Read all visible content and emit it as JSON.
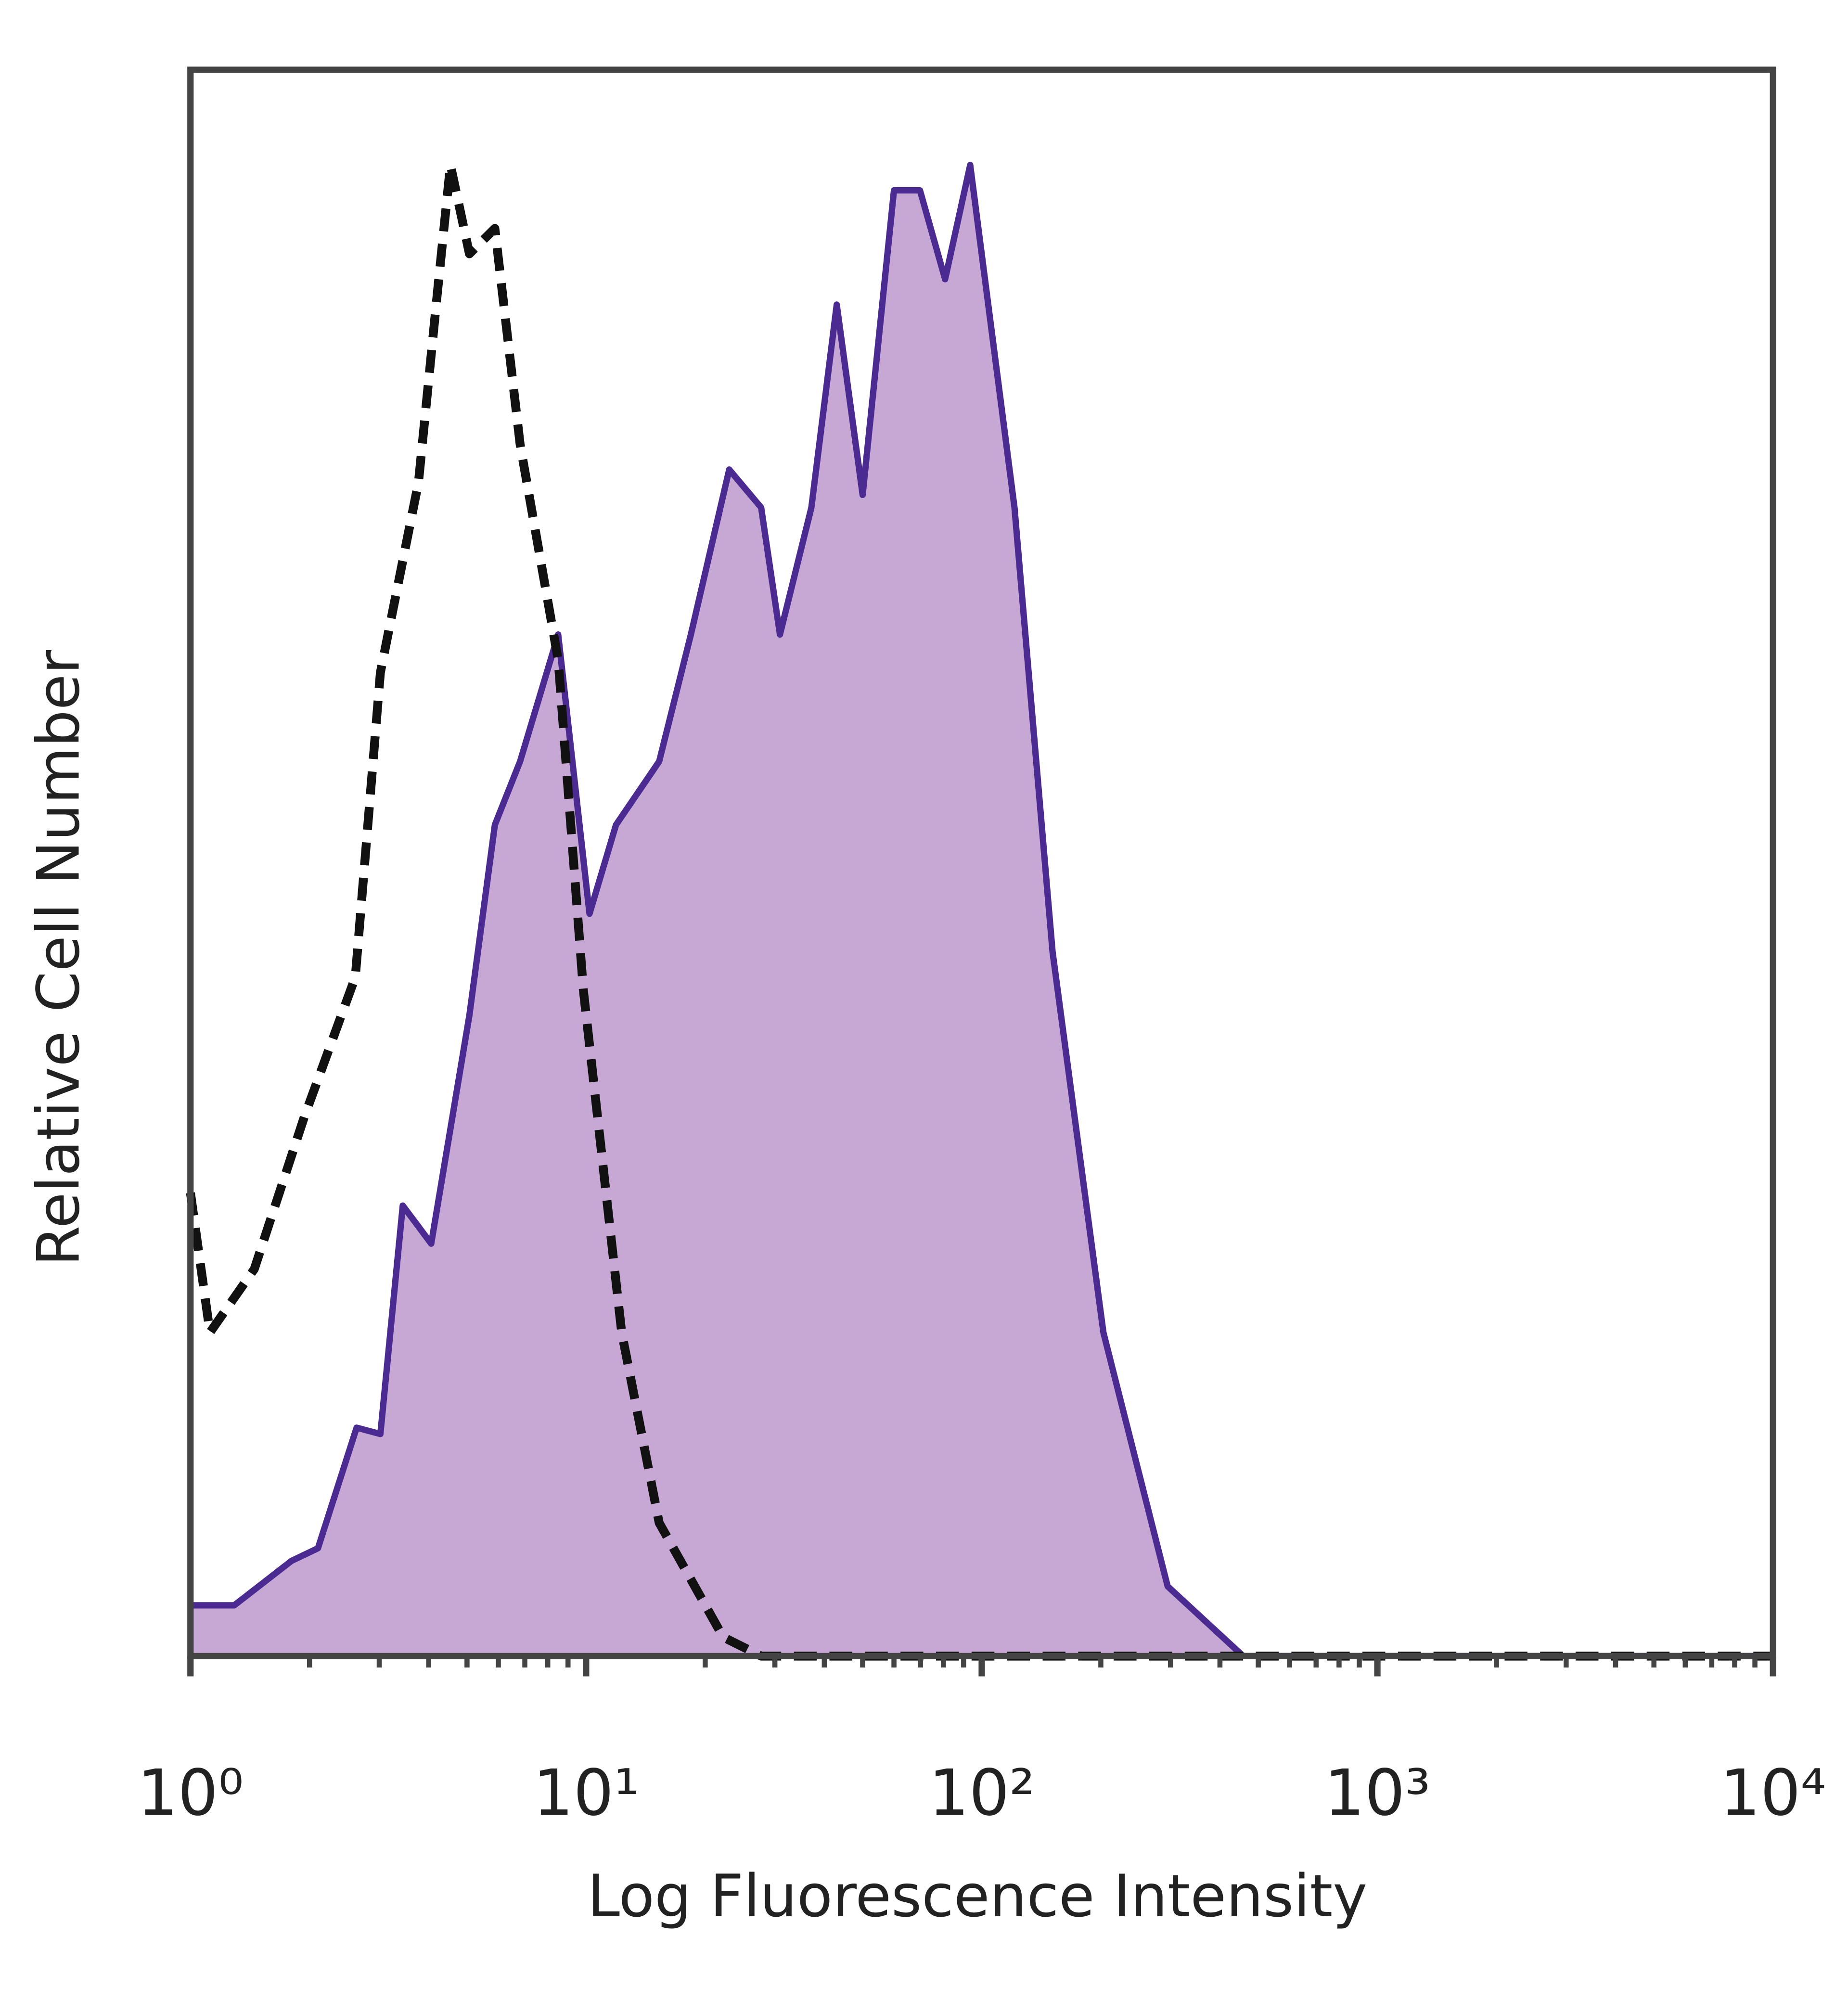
{
  "chart_data": {
    "type": "line",
    "xlabel": "Log Fluorescence Intensity",
    "ylabel": "Relative Cell Number",
    "xscale": "log",
    "xlim": [
      1,
      10000
    ],
    "ylim": [
      0,
      100
    ],
    "xticks": [
      {
        "value": 1,
        "label": "10⁰"
      },
      {
        "value": 10,
        "label": "10¹"
      },
      {
        "value": 100,
        "label": "10²"
      },
      {
        "value": 1000,
        "label": "10³"
      },
      {
        "value": 10000,
        "label": "10⁴"
      }
    ],
    "xminorticks": [
      2,
      3,
      4,
      5,
      6,
      7,
      8,
      9,
      20,
      30,
      40,
      50,
      60,
      70,
      80,
      90,
      200,
      300,
      400,
      500,
      600,
      700,
      800,
      900,
      2000,
      3000,
      4000,
      5000,
      6000,
      7000,
      8000,
      9000
    ],
    "series": [
      {
        "color": "#4b2a91",
        "fill": "#c7a8d5",
        "dash": false,
        "x": [
          1,
          1.29,
          1.8,
          2.1,
          2.63,
          3.02,
          3.44,
          4.06,
          5.07,
          5.88,
          6.81,
          8.5,
          10.2,
          11.9,
          15.3,
          18.4,
          23,
          27.7,
          30.9,
          37.1,
          43,
          50,
          60,
          69.8,
          80.8,
          93.5,
          121,
          151,
          203,
          295,
          458,
          10000
        ],
        "values": [
          3.2,
          3.2,
          6,
          6.8,
          14.4,
          14,
          28.4,
          26,
          40.4,
          52.4,
          56.4,
          64.4,
          46.8,
          52.4,
          56.4,
          64.4,
          74.8,
          72.4,
          64.4,
          72.4,
          85.2,
          73.2,
          92.4,
          92.4,
          86.8,
          94,
          72.4,
          44.4,
          20.4,
          4.4,
          0,
          0
        ]
      },
      {
        "color": "#111111",
        "fill": null,
        "dash": true,
        "x": [
          1,
          1.12,
          1.45,
          1.94,
          2.61,
          3.02,
          3.77,
          4.21,
          4.54,
          5.07,
          5.88,
          6.81,
          8.5,
          9.84,
          12.3,
          15.3,
          22.2,
          27.7,
          10000
        ],
        "values": [
          29.2,
          20.4,
          24.4,
          34,
          42.8,
          62,
          74,
          86,
          94,
          88.4,
          90,
          76.4,
          62.8,
          42,
          20.4,
          8.4,
          1.2,
          0,
          0
        ]
      }
    ]
  }
}
